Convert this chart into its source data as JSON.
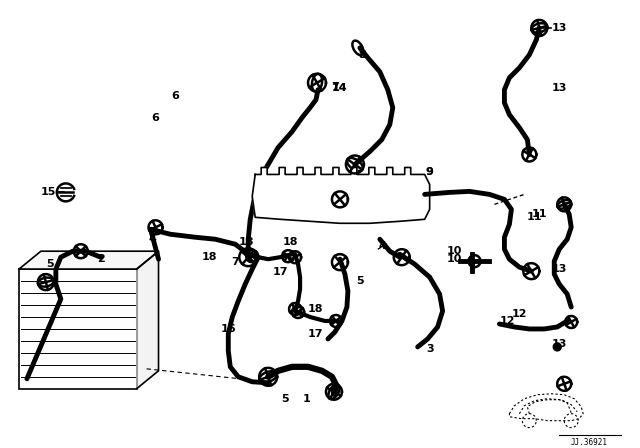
{
  "bg_color": "#ffffff",
  "line_color": "#000000",
  "diagram_number": "JJ.36921",
  "lw_hose": 3.5,
  "lw_thin": 1.2,
  "lw_clamp": 1.8
}
